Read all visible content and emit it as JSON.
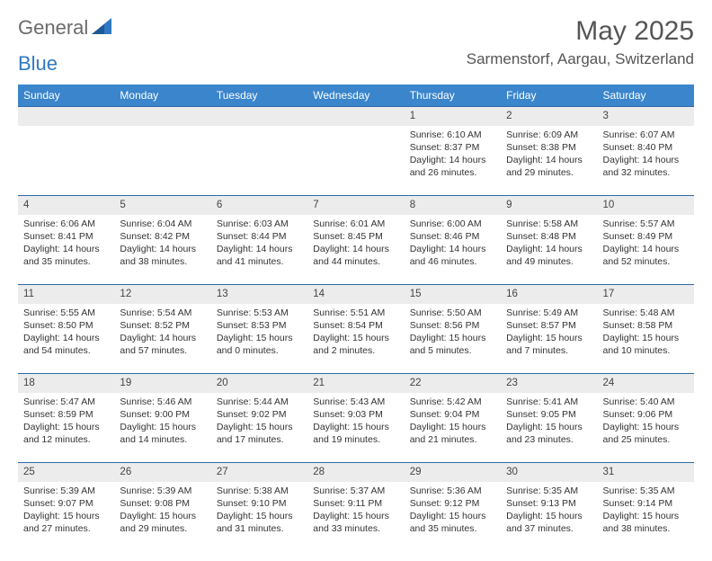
{
  "brand": {
    "part1": "General",
    "part2": "Blue"
  },
  "title": "May 2025",
  "location": "Sarmenstorf, Aargau, Switzerland",
  "colors": {
    "header_bg": "#3a85cc",
    "header_fg": "#ffffff",
    "daynum_bg": "#ececec",
    "row_border": "#2f6aa8",
    "text": "#333333",
    "logo_gray": "#6b6b6b",
    "logo_blue": "#2f78c3"
  },
  "weekdays": [
    "Sunday",
    "Monday",
    "Tuesday",
    "Wednesday",
    "Thursday",
    "Friday",
    "Saturday"
  ],
  "weeks": [
    [
      null,
      null,
      null,
      null,
      {
        "n": "1",
        "sr": "Sunrise: 6:10 AM",
        "ss": "Sunset: 8:37 PM",
        "d1": "Daylight: 14 hours",
        "d2": "and 26 minutes."
      },
      {
        "n": "2",
        "sr": "Sunrise: 6:09 AM",
        "ss": "Sunset: 8:38 PM",
        "d1": "Daylight: 14 hours",
        "d2": "and 29 minutes."
      },
      {
        "n": "3",
        "sr": "Sunrise: 6:07 AM",
        "ss": "Sunset: 8:40 PM",
        "d1": "Daylight: 14 hours",
        "d2": "and 32 minutes."
      }
    ],
    [
      {
        "n": "4",
        "sr": "Sunrise: 6:06 AM",
        "ss": "Sunset: 8:41 PM",
        "d1": "Daylight: 14 hours",
        "d2": "and 35 minutes."
      },
      {
        "n": "5",
        "sr": "Sunrise: 6:04 AM",
        "ss": "Sunset: 8:42 PM",
        "d1": "Daylight: 14 hours",
        "d2": "and 38 minutes."
      },
      {
        "n": "6",
        "sr": "Sunrise: 6:03 AM",
        "ss": "Sunset: 8:44 PM",
        "d1": "Daylight: 14 hours",
        "d2": "and 41 minutes."
      },
      {
        "n": "7",
        "sr": "Sunrise: 6:01 AM",
        "ss": "Sunset: 8:45 PM",
        "d1": "Daylight: 14 hours",
        "d2": "and 44 minutes."
      },
      {
        "n": "8",
        "sr": "Sunrise: 6:00 AM",
        "ss": "Sunset: 8:46 PM",
        "d1": "Daylight: 14 hours",
        "d2": "and 46 minutes."
      },
      {
        "n": "9",
        "sr": "Sunrise: 5:58 AM",
        "ss": "Sunset: 8:48 PM",
        "d1": "Daylight: 14 hours",
        "d2": "and 49 minutes."
      },
      {
        "n": "10",
        "sr": "Sunrise: 5:57 AM",
        "ss": "Sunset: 8:49 PM",
        "d1": "Daylight: 14 hours",
        "d2": "and 52 minutes."
      }
    ],
    [
      {
        "n": "11",
        "sr": "Sunrise: 5:55 AM",
        "ss": "Sunset: 8:50 PM",
        "d1": "Daylight: 14 hours",
        "d2": "and 54 minutes."
      },
      {
        "n": "12",
        "sr": "Sunrise: 5:54 AM",
        "ss": "Sunset: 8:52 PM",
        "d1": "Daylight: 14 hours",
        "d2": "and 57 minutes."
      },
      {
        "n": "13",
        "sr": "Sunrise: 5:53 AM",
        "ss": "Sunset: 8:53 PM",
        "d1": "Daylight: 15 hours",
        "d2": "and 0 minutes."
      },
      {
        "n": "14",
        "sr": "Sunrise: 5:51 AM",
        "ss": "Sunset: 8:54 PM",
        "d1": "Daylight: 15 hours",
        "d2": "and 2 minutes."
      },
      {
        "n": "15",
        "sr": "Sunrise: 5:50 AM",
        "ss": "Sunset: 8:56 PM",
        "d1": "Daylight: 15 hours",
        "d2": "and 5 minutes."
      },
      {
        "n": "16",
        "sr": "Sunrise: 5:49 AM",
        "ss": "Sunset: 8:57 PM",
        "d1": "Daylight: 15 hours",
        "d2": "and 7 minutes."
      },
      {
        "n": "17",
        "sr": "Sunrise: 5:48 AM",
        "ss": "Sunset: 8:58 PM",
        "d1": "Daylight: 15 hours",
        "d2": "and 10 minutes."
      }
    ],
    [
      {
        "n": "18",
        "sr": "Sunrise: 5:47 AM",
        "ss": "Sunset: 8:59 PM",
        "d1": "Daylight: 15 hours",
        "d2": "and 12 minutes."
      },
      {
        "n": "19",
        "sr": "Sunrise: 5:46 AM",
        "ss": "Sunset: 9:00 PM",
        "d1": "Daylight: 15 hours",
        "d2": "and 14 minutes."
      },
      {
        "n": "20",
        "sr": "Sunrise: 5:44 AM",
        "ss": "Sunset: 9:02 PM",
        "d1": "Daylight: 15 hours",
        "d2": "and 17 minutes."
      },
      {
        "n": "21",
        "sr": "Sunrise: 5:43 AM",
        "ss": "Sunset: 9:03 PM",
        "d1": "Daylight: 15 hours",
        "d2": "and 19 minutes."
      },
      {
        "n": "22",
        "sr": "Sunrise: 5:42 AM",
        "ss": "Sunset: 9:04 PM",
        "d1": "Daylight: 15 hours",
        "d2": "and 21 minutes."
      },
      {
        "n": "23",
        "sr": "Sunrise: 5:41 AM",
        "ss": "Sunset: 9:05 PM",
        "d1": "Daylight: 15 hours",
        "d2": "and 23 minutes."
      },
      {
        "n": "24",
        "sr": "Sunrise: 5:40 AM",
        "ss": "Sunset: 9:06 PM",
        "d1": "Daylight: 15 hours",
        "d2": "and 25 minutes."
      }
    ],
    [
      {
        "n": "25",
        "sr": "Sunrise: 5:39 AM",
        "ss": "Sunset: 9:07 PM",
        "d1": "Daylight: 15 hours",
        "d2": "and 27 minutes."
      },
      {
        "n": "26",
        "sr": "Sunrise: 5:39 AM",
        "ss": "Sunset: 9:08 PM",
        "d1": "Daylight: 15 hours",
        "d2": "and 29 minutes."
      },
      {
        "n": "27",
        "sr": "Sunrise: 5:38 AM",
        "ss": "Sunset: 9:10 PM",
        "d1": "Daylight: 15 hours",
        "d2": "and 31 minutes."
      },
      {
        "n": "28",
        "sr": "Sunrise: 5:37 AM",
        "ss": "Sunset: 9:11 PM",
        "d1": "Daylight: 15 hours",
        "d2": "and 33 minutes."
      },
      {
        "n": "29",
        "sr": "Sunrise: 5:36 AM",
        "ss": "Sunset: 9:12 PM",
        "d1": "Daylight: 15 hours",
        "d2": "and 35 minutes."
      },
      {
        "n": "30",
        "sr": "Sunrise: 5:35 AM",
        "ss": "Sunset: 9:13 PM",
        "d1": "Daylight: 15 hours",
        "d2": "and 37 minutes."
      },
      {
        "n": "31",
        "sr": "Sunrise: 5:35 AM",
        "ss": "Sunset: 9:14 PM",
        "d1": "Daylight: 15 hours",
        "d2": "and 38 minutes."
      }
    ]
  ]
}
